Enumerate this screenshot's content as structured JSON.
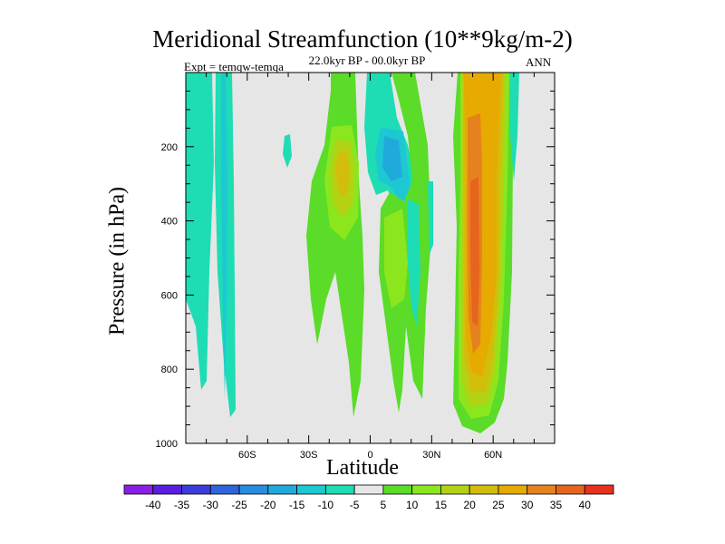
{
  "chart_data": {
    "type": "heatmap",
    "title": "Meridional Streamfunction (10**9kg/m-2)",
    "subtitle": "22.0kyr BP - 00.0kyr BP",
    "left_label": "Expt = temqw-temqa",
    "right_label": "ANN",
    "xlabel": "Latitude",
    "ylabel": "Pressure (in hPa)",
    "xlim": [
      -90,
      90
    ],
    "ylim": [
      1000,
      0
    ],
    "x_ticks": [
      {
        "value": -60,
        "label": "60S"
      },
      {
        "value": -30,
        "label": "30S"
      },
      {
        "value": 0,
        "label": "0"
      },
      {
        "value": 30,
        "label": "30N"
      },
      {
        "value": 60,
        "label": "60N"
      }
    ],
    "y_ticks": [
      {
        "value": 200,
        "label": "200"
      },
      {
        "value": 400,
        "label": "400"
      },
      {
        "value": 600,
        "label": "600"
      },
      {
        "value": 800,
        "label": "800"
      },
      {
        "value": 1000,
        "label": "1000"
      }
    ],
    "colorbar": {
      "levels": [
        "-40",
        "-35",
        "-30",
        "-25",
        "-20",
        "-15",
        "-10",
        "-5",
        "5",
        "10",
        "15",
        "20",
        "25",
        "30",
        "35",
        "40"
      ],
      "colors": [
        "#8a1ee6",
        "#5a1ee0",
        "#3c3cdc",
        "#2f64dc",
        "#288ce0",
        "#20aadc",
        "#1ec8d2",
        "#1edcb4",
        "#e6e6e6",
        "#5adc28",
        "#8ce61e",
        "#b4d214",
        "#d2be0a",
        "#e6aa00",
        "#e6821e",
        "#e6641e",
        "#e6321e"
      ]
    },
    "features": [
      {
        "name": "sh-high-lat-negative-band",
        "lat": [
          -88,
          -62
        ],
        "p": [
          0,
          950
        ],
        "value": -10
      },
      {
        "name": "sh-mid-negative-speck",
        "lat": [
          -40,
          -37
        ],
        "p": [
          150,
          230
        ],
        "value": -10
      },
      {
        "name": "sh-subtropical-positive-cell",
        "lat": [
          -28,
          2
        ],
        "p": [
          0,
          780
        ],
        "value": 10
      },
      {
        "name": "sh-upper-positive-core",
        "lat": [
          -16,
          -8
        ],
        "p": [
          120,
          310
        ],
        "value": 20
      },
      {
        "name": "tropical-negative-cell",
        "lat": [
          2,
          22
        ],
        "p": [
          0,
          520
        ],
        "value": -10
      },
      {
        "name": "tropical-positive-cell",
        "lat": [
          6,
          28
        ],
        "p": [
          60,
          930
        ],
        "value": 10
      },
      {
        "name": "nh-tropical-positive-core",
        "lat": [
          8,
          20
        ],
        "p": [
          380,
          600
        ],
        "value": 15
      },
      {
        "name": "nh-midlat-positive-cell",
        "lat": [
          42,
          70
        ],
        "p": [
          0,
          980
        ],
        "value": 25
      },
      {
        "name": "nh-midlat-positive-core",
        "lat": [
          47,
          58
        ],
        "p": [
          80,
          900
        ],
        "value": 35
      },
      {
        "name": "nh-high-lat-negative-sliver",
        "lat": [
          67,
          73
        ],
        "p": [
          0,
          300
        ],
        "value": -10
      }
    ]
  }
}
